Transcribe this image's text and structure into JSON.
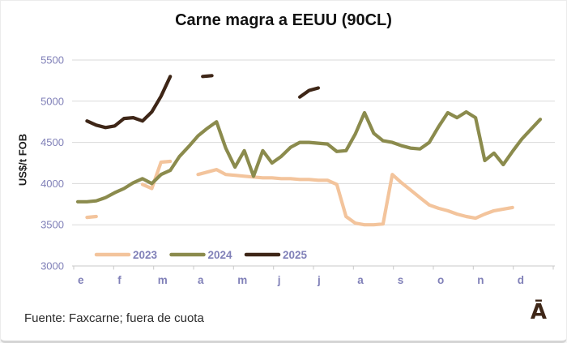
{
  "footer": {
    "source": "Fuente: Faxcarne; fuera de cuota",
    "logo_text": "Ā"
  },
  "chart_data": {
    "type": "line",
    "title": "Carne magra a EEUU (90CL)",
    "ylabel": "US$/t FOB",
    "ylim": [
      3000,
      5500
    ],
    "yticks": [
      5500,
      5000,
      4500,
      4000,
      3500,
      3000
    ],
    "months": [
      "e",
      "f",
      "m",
      "a",
      "m",
      "j",
      "j",
      "a",
      "s",
      "o",
      "n",
      "d"
    ],
    "x_model": "weekly points, weeks 0-51 spanning Jan-Dec",
    "grid": "horizontal",
    "legend_position": "bottom-left",
    "legend": [
      "2023",
      "2024",
      "2025"
    ],
    "colors": {
      "grid": "#d9d9d9",
      "axis_line": "#c9c9c9",
      "axis_text": "#8080b8",
      "title": "#111111",
      "series_2023": "#f3c49c",
      "series_2024": "#8b8b4d",
      "series_2025": "#3e2617"
    },
    "series": [
      {
        "name": "2023",
        "color": "#f3c49c",
        "segments": [
          {
            "start_week": 1,
            "values": [
              3590,
              3600
            ]
          },
          {
            "start_week": 7,
            "values": [
              3990,
              3940,
              4260,
              4270
            ]
          },
          {
            "start_week": 13,
            "values": [
              4110,
              4140,
              4170,
              4110,
              4100,
              4090,
              4080,
              4070,
              4070,
              4060,
              4060,
              4050,
              4050,
              4040,
              4040,
              3990,
              3600,
              3520,
              3500,
              3500,
              3510,
              4110,
              4010,
              3920,
              3830,
              3740,
              3700,
              3670,
              3630,
              3600,
              3580,
              3630,
              3670,
              3690,
              3710
            ]
          }
        ]
      },
      {
        "name": "2024",
        "color": "#8b8b4d",
        "segments": [
          {
            "start_week": 0,
            "values": [
              3780,
              3780,
              3790,
              3830,
              3890,
              3940,
              4010,
              4060,
              4000,
              4110,
              4160,
              4330,
              4450,
              4580,
              4670,
              4750,
              4430,
              4200,
              4400,
              4090,
              4400,
              4250,
              4330,
              4440,
              4500,
              4500,
              4490,
              4480,
              4390,
              4400,
              4600,
              4860,
              4610,
              4520,
              4500,
              4460,
              4430,
              4420,
              4500,
              4690,
              4860,
              4800,
              4870,
              4800,
              4280,
              4370,
              4230,
              4390,
              4540,
              4660,
              4780
            ]
          }
        ]
      },
      {
        "name": "2025",
        "color": "#3e2617",
        "segments": [
          {
            "start_week": 1,
            "values": [
              4760,
              4710,
              4680,
              4700,
              4790,
              4800,
              4760,
              4870,
              5060,
              5300
            ]
          },
          {
            "start_week": 13.5,
            "values": [
              5300,
              5310
            ]
          },
          {
            "start_week": 24,
            "values": [
              5050,
              5130,
              5160
            ]
          }
        ]
      }
    ]
  }
}
